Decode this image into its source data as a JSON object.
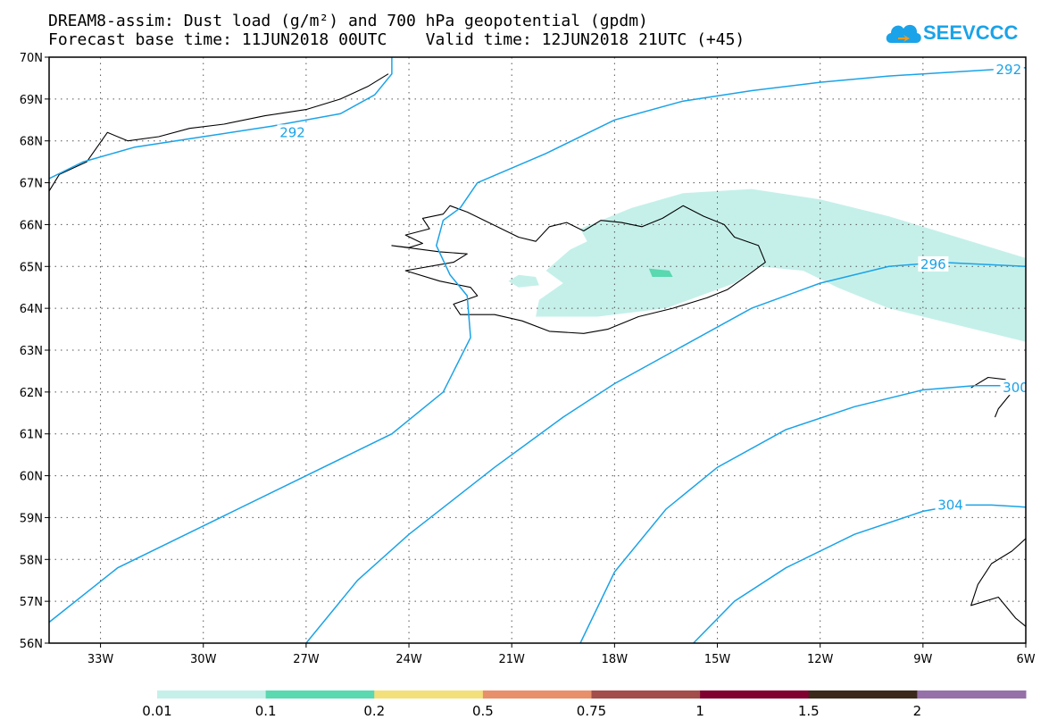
{
  "title_line1": "DREAM8-assim: Dust load (g/m²) and 700 hPa geopotential (gpdm)",
  "title_line2": "Forecast base time: 11JUN2018 00UTC    Valid time: 12JUN2018 21UTC (+45)",
  "logo_text": "SEEVCCC",
  "colors": {
    "contour": "#1aa3e8",
    "coast": "#000000",
    "dust_low": "#c5f0ea",
    "dust_mid": "#5ad8b0"
  },
  "map": {
    "lon_range": [
      -34.5,
      -6
    ],
    "lat_range": [
      56,
      70
    ],
    "lon_ticks": [
      {
        "lon": -33,
        "label": "33W"
      },
      {
        "lon": -30,
        "label": "30W"
      },
      {
        "lon": -27,
        "label": "27W"
      },
      {
        "lon": -24,
        "label": "24W"
      },
      {
        "lon": -21,
        "label": "21W"
      },
      {
        "lon": -18,
        "label": "18W"
      },
      {
        "lon": -15,
        "label": "15W"
      },
      {
        "lon": -12,
        "label": "12W"
      },
      {
        "lon": -9,
        "label": "9W"
      },
      {
        "lon": -6,
        "label": "6W"
      }
    ],
    "lat_ticks": [
      {
        "lat": 56,
        "label": "56N"
      },
      {
        "lat": 57,
        "label": "57N"
      },
      {
        "lat": 58,
        "label": "58N"
      },
      {
        "lat": 59,
        "label": "59N"
      },
      {
        "lat": 60,
        "label": "60N"
      },
      {
        "lat": 61,
        "label": "61N"
      },
      {
        "lat": 62,
        "label": "62N"
      },
      {
        "lat": 63,
        "label": "63N"
      },
      {
        "lat": 64,
        "label": "64N"
      },
      {
        "lat": 65,
        "label": "65N"
      },
      {
        "lat": 66,
        "label": "66N"
      },
      {
        "lat": 67,
        "label": "67N"
      },
      {
        "lat": 68,
        "label": "68N"
      },
      {
        "lat": 69,
        "label": "69N"
      },
      {
        "lat": 70,
        "label": "70N"
      }
    ],
    "contours": [
      {
        "level": 292,
        "label": "292",
        "label_at": [
          -27.4,
          68.2
        ],
        "points": [
          [
            -34.5,
            67.1
          ],
          [
            -33.5,
            67.5
          ],
          [
            -32,
            67.85
          ],
          [
            -30,
            68.1
          ],
          [
            -28,
            68.35
          ],
          [
            -26,
            68.65
          ],
          [
            -25,
            69.1
          ],
          [
            -24.5,
            69.6
          ],
          [
            -24.5,
            70
          ]
        ]
      },
      {
        "level": 292,
        "label": "292",
        "label_at": [
          -6.5,
          69.7
        ],
        "points": [
          [
            -22.5,
            66.4
          ],
          [
            -22,
            67.0
          ],
          [
            -20,
            67.7
          ],
          [
            -18,
            68.5
          ],
          [
            -16,
            68.95
          ],
          [
            -14,
            69.2
          ],
          [
            -12,
            69.4
          ],
          [
            -10,
            69.55
          ],
          [
            -8,
            69.65
          ],
          [
            -6,
            69.75
          ]
        ]
      },
      {
        "level": 292,
        "label": "",
        "label_at": null,
        "points": [
          [
            -22.5,
            66.4
          ],
          [
            -23,
            66.1
          ],
          [
            -23.2,
            65.5
          ],
          [
            -22.8,
            64.8
          ],
          [
            -22.3,
            64.3
          ],
          [
            -22.2,
            63.3
          ],
          [
            -23,
            62.0
          ],
          [
            -24.5,
            61.0
          ],
          [
            -27,
            60.0
          ],
          [
            -30,
            58.8
          ],
          [
            -32.5,
            57.8
          ],
          [
            -34.5,
            56.5
          ]
        ]
      },
      {
        "level": 296,
        "label": "296",
        "label_at": [
          -8.7,
          65.05
        ],
        "points": [
          [
            -27,
            56
          ],
          [
            -25.5,
            57.5
          ],
          [
            -24,
            58.6
          ],
          [
            -21.5,
            60.2
          ],
          [
            -19.5,
            61.4
          ],
          [
            -18,
            62.2
          ],
          [
            -16,
            63.1
          ],
          [
            -14,
            64.0
          ],
          [
            -12,
            64.6
          ],
          [
            -10,
            65.0
          ],
          [
            -8.5,
            65.1
          ],
          [
            -6,
            65.0
          ]
        ]
      },
      {
        "level": 300,
        "label": "300",
        "label_at": [
          -6.3,
          62.1
        ],
        "points": [
          [
            -19,
            56
          ],
          [
            -18,
            57.7
          ],
          [
            -16.5,
            59.2
          ],
          [
            -15,
            60.2
          ],
          [
            -13,
            61.1
          ],
          [
            -11,
            61.65
          ],
          [
            -9,
            62.05
          ],
          [
            -7.5,
            62.15
          ],
          [
            -6,
            62.15
          ]
        ]
      },
      {
        "level": 304,
        "label": "304",
        "label_at": [
          -8.2,
          59.3
        ],
        "points": [
          [
            -15.7,
            56
          ],
          [
            -14.5,
            57
          ],
          [
            -13,
            57.8
          ],
          [
            -11,
            58.6
          ],
          [
            -9,
            59.15
          ],
          [
            -8,
            59.3
          ],
          [
            -7,
            59.3
          ],
          [
            -6,
            59.25
          ]
        ]
      }
    ],
    "coastlines": [
      {
        "name": "iceland",
        "closed": true,
        "points": [
          [
            -24.5,
            65.5
          ],
          [
            -24.0,
            65.45
          ],
          [
            -23.6,
            65.55
          ],
          [
            -24.1,
            65.75
          ],
          [
            -23.4,
            65.9
          ],
          [
            -23.6,
            66.15
          ],
          [
            -23.0,
            66.25
          ],
          [
            -22.8,
            66.45
          ],
          [
            -22.3,
            66.3
          ],
          [
            -21.8,
            66.1
          ],
          [
            -21.3,
            65.9
          ],
          [
            -20.8,
            65.7
          ],
          [
            -20.3,
            65.6
          ],
          [
            -19.9,
            65.95
          ],
          [
            -19.4,
            66.05
          ],
          [
            -18.9,
            65.85
          ],
          [
            -18.4,
            66.1
          ],
          [
            -17.8,
            66.05
          ],
          [
            -17.2,
            65.95
          ],
          [
            -16.6,
            66.15
          ],
          [
            -16.0,
            66.45
          ],
          [
            -15.4,
            66.2
          ],
          [
            -14.8,
            66.0
          ],
          [
            -14.5,
            65.7
          ],
          [
            -13.8,
            65.5
          ],
          [
            -13.6,
            65.1
          ],
          [
            -14.1,
            64.8
          ],
          [
            -14.7,
            64.45
          ],
          [
            -15.3,
            64.25
          ],
          [
            -16.3,
            64.0
          ],
          [
            -17.3,
            63.8
          ],
          [
            -18.2,
            63.5
          ],
          [
            -18.9,
            63.4
          ],
          [
            -19.9,
            63.45
          ],
          [
            -20.7,
            63.7
          ],
          [
            -21.5,
            63.85
          ],
          [
            -22.5,
            63.85
          ],
          [
            -22.7,
            64.1
          ],
          [
            -22.0,
            64.3
          ],
          [
            -22.2,
            64.5
          ],
          [
            -23.1,
            64.65
          ],
          [
            -24.1,
            64.9
          ],
          [
            -22.7,
            65.1
          ],
          [
            -22.3,
            65.3
          ],
          [
            -23.1,
            65.35
          ]
        ]
      },
      {
        "name": "greenland",
        "closed": false,
        "points": [
          [
            -34.5,
            66.8
          ],
          [
            -34.2,
            67.2
          ],
          [
            -33.4,
            67.5
          ],
          [
            -32.8,
            68.2
          ],
          [
            -32.2,
            68.0
          ],
          [
            -31.3,
            68.1
          ],
          [
            -30.4,
            68.3
          ],
          [
            -29.4,
            68.4
          ],
          [
            -28.2,
            68.6
          ],
          [
            -27.0,
            68.75
          ],
          [
            -26.0,
            69.0
          ],
          [
            -25.2,
            69.3
          ],
          [
            -24.6,
            69.6
          ]
        ]
      },
      {
        "name": "faroe",
        "closed": false,
        "points": [
          [
            -7.6,
            62.1
          ],
          [
            -7.1,
            62.35
          ],
          [
            -6.6,
            62.3
          ],
          [
            -6.4,
            62.0
          ],
          [
            -6.8,
            61.6
          ],
          [
            -6.9,
            61.4
          ]
        ]
      },
      {
        "name": "scotland",
        "closed": false,
        "points": [
          [
            -6,
            58.5
          ],
          [
            -6.4,
            58.2
          ],
          [
            -7.0,
            57.9
          ],
          [
            -7.4,
            57.4
          ],
          [
            -7.6,
            56.9
          ],
          [
            -6.8,
            57.1
          ],
          [
            -6.3,
            56.6
          ],
          [
            -6,
            56.4
          ]
        ]
      }
    ],
    "dust": [
      {
        "level": "0.01",
        "color": "#c5f0ea",
        "points": [
          [
            -19.0,
            65.9
          ],
          [
            -17.5,
            66.4
          ],
          [
            -16.0,
            66.75
          ],
          [
            -14.0,
            66.85
          ],
          [
            -12.0,
            66.6
          ],
          [
            -10.0,
            66.2
          ],
          [
            -8.0,
            65.7
          ],
          [
            -6.0,
            65.2
          ],
          [
            -6.0,
            63.2
          ],
          [
            -8.0,
            63.6
          ],
          [
            -10.0,
            64.0
          ],
          [
            -11.5,
            64.5
          ],
          [
            -12.5,
            64.9
          ],
          [
            -13.8,
            65.0
          ],
          [
            -14.5,
            64.6
          ],
          [
            -15.5,
            64.3
          ],
          [
            -16.5,
            64.0
          ],
          [
            -18.5,
            63.8
          ],
          [
            -20.3,
            63.8
          ],
          [
            -20.2,
            64.2
          ],
          [
            -19.5,
            64.6
          ],
          [
            -20.0,
            64.9
          ],
          [
            -19.3,
            65.4
          ],
          [
            -18.8,
            65.6
          ]
        ]
      },
      {
        "level": "0.01",
        "color": "#c5f0ea",
        "points": [
          [
            -20.8,
            64.8
          ],
          [
            -20.3,
            64.75
          ],
          [
            -20.2,
            64.55
          ],
          [
            -20.8,
            64.5
          ],
          [
            -21.1,
            64.65
          ]
        ]
      },
      {
        "level": "0.1",
        "color": "#5ad8b0",
        "points": [
          [
            -17.0,
            64.95
          ],
          [
            -16.4,
            64.9
          ],
          [
            -16.3,
            64.75
          ],
          [
            -16.9,
            64.75
          ]
        ]
      }
    ]
  },
  "colorbar": {
    "colors": [
      "#c5f0ea",
      "#5ad8b0",
      "#f3e07a",
      "#e8906a",
      "#a34e4a",
      "#800030",
      "#3b2a1c",
      "#9670a8"
    ],
    "labels": [
      "0.01",
      "0.1",
      "0.2",
      "0.5",
      "0.75",
      "1",
      "1.5",
      "2"
    ]
  }
}
